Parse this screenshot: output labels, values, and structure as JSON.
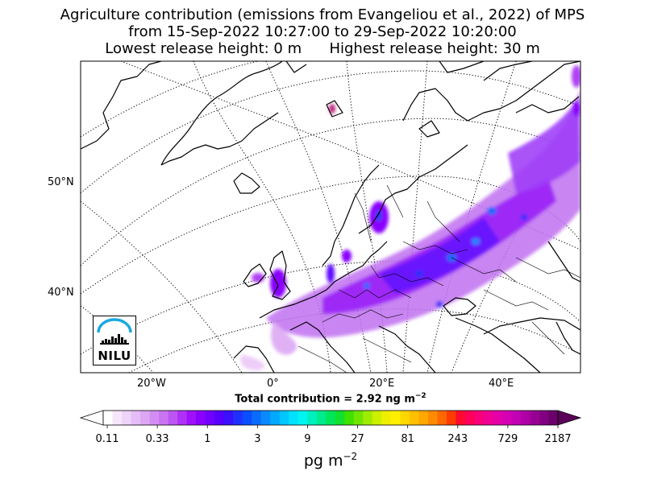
{
  "title": {
    "line1": "Agriculture contribution (emissions from Evangeliou et al., 2022) of MPS",
    "line2": "from 15-Sep-2022 10:27:00 to 29-Sep-2022 10:20:00",
    "line3": "Lowest release height: 0 m      Highest release height: 30 m"
  },
  "map": {
    "lat_labels": [
      "50°N",
      "40°N"
    ],
    "lon_labels": [
      "20°W",
      "0°",
      "20°E",
      "40°E"
    ],
    "logo_text": "NILU",
    "land_color": "#ffffff",
    "coast_color": "#000000"
  },
  "total": {
    "prefix": "Total contribution = 2.92 ng m",
    "exponent": "−2"
  },
  "colorbar": {
    "ticks": [
      "0.11",
      "0.33",
      "1",
      "3",
      "9",
      "27",
      "81",
      "243",
      "729",
      "2187"
    ],
    "unit_base": "pg m",
    "unit_exponent": "−2",
    "colors": [
      "#ffffff",
      "#f7e6fb",
      "#efd3f9",
      "#e6bdf7",
      "#dda7f5",
      "#d48ef3",
      "#c975f2",
      "#bd55f5",
      "#b030f8",
      "#9f10fb",
      "#8a00ff",
      "#7200ff",
      "#5700ff",
      "#3a10ff",
      "#2030ff",
      "#0a4eff",
      "#0a6cff",
      "#0a8aff",
      "#00a8ff",
      "#00c6ff",
      "#00e2ff",
      "#00f5f0",
      "#00f0c0",
      "#00eb8c",
      "#00e65a",
      "#10e030",
      "#40e000",
      "#70e600",
      "#a0ec00",
      "#ccf000",
      "#eef000",
      "#fff000",
      "#ffd800",
      "#ffc000",
      "#ffa800",
      "#ff8c00",
      "#ff6800",
      "#ff3c00",
      "#ff0a30",
      "#ff005a",
      "#f8007a",
      "#f00094",
      "#e400a8",
      "#d400b4",
      "#c200b4",
      "#ae00a6",
      "#980094",
      "#820080",
      "#6c006a"
    ],
    "over_color": "#5a0058"
  }
}
